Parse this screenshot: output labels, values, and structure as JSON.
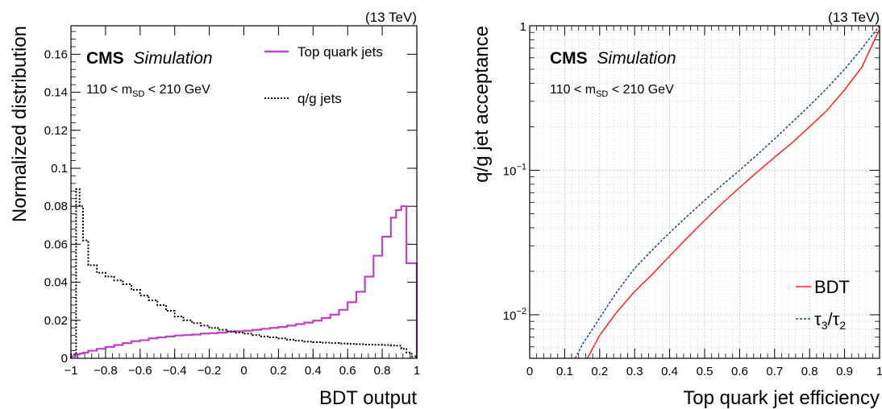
{
  "chart_data": [
    {
      "type": "histogram",
      "energy": "(13 TeV)",
      "brand": "CMS",
      "brand_sub": "Simulation",
      "selection": {
        "pre": "110 < m",
        "sub": "SD",
        "post": " < 210 GeV"
      },
      "xlabel": "BDT output",
      "ylabel": "Normalized distribution",
      "xlim": [
        -1,
        1
      ],
      "ylim": [
        0,
        0.175
      ],
      "xticks": [
        -1,
        -0.8,
        -0.6,
        -0.4,
        -0.2,
        0,
        0.2,
        0.4,
        0.6,
        0.8,
        1
      ],
      "xtick_labels": [
        "−1",
        "−0.8",
        "−0.6",
        "−0.4",
        "−0.2",
        "0",
        "0.2",
        "0.4",
        "0.6",
        "0.8",
        "1"
      ],
      "yticks": [
        0,
        0.02,
        0.04,
        0.06,
        0.08,
        0.1,
        0.12,
        0.14,
        0.16
      ],
      "ytick_labels": [
        "0",
        "0.02",
        "0.04",
        "0.06",
        "0.08",
        "0.1",
        "0.12",
        "0.14",
        "0.16"
      ],
      "legend_position": "top-right",
      "bin_edges": [
        -1,
        -0.97,
        -0.95,
        -0.93,
        -0.9,
        -0.85,
        -0.8,
        -0.75,
        -0.7,
        -0.65,
        -0.6,
        -0.55,
        -0.5,
        -0.45,
        -0.4,
        -0.35,
        -0.3,
        -0.25,
        -0.2,
        -0.15,
        -0.1,
        -0.05,
        0,
        0.05,
        0.1,
        0.15,
        0.2,
        0.25,
        0.3,
        0.35,
        0.4,
        0.45,
        0.5,
        0.55,
        0.6,
        0.65,
        0.7,
        0.75,
        0.8,
        0.85,
        0.88,
        0.91,
        0.94,
        0.97,
        1
      ],
      "series": [
        {
          "name": "Top quark jets",
          "color": "#c040c8",
          "style": "solid",
          "values": [
            0.001,
            0.002,
            0.0025,
            0.003,
            0.004,
            0.005,
            0.006,
            0.007,
            0.008,
            0.009,
            0.0095,
            0.0105,
            0.011,
            0.0115,
            0.012,
            0.0122,
            0.0125,
            0.013,
            0.0132,
            0.0135,
            0.014,
            0.0142,
            0.0145,
            0.015,
            0.0155,
            0.016,
            0.0165,
            0.0172,
            0.018,
            0.0188,
            0.0198,
            0.0212,
            0.023,
            0.0255,
            0.0295,
            0.035,
            0.043,
            0.054,
            0.064,
            0.074,
            0.078,
            0.08,
            0.05,
            0.05
          ]
        },
        {
          "name": "q/g jets",
          "color": "#000000",
          "style": "dotted",
          "values": [
            0.002,
            0.089,
            0.08,
            0.062,
            0.049,
            0.045,
            0.043,
            0.041,
            0.039,
            0.036,
            0.033,
            0.0305,
            0.028,
            0.025,
            0.022,
            0.02,
            0.0185,
            0.0172,
            0.016,
            0.015,
            0.0142,
            0.0135,
            0.013,
            0.0122,
            0.0115,
            0.011,
            0.0105,
            0.0098,
            0.0092,
            0.0088,
            0.0085,
            0.0082,
            0.008,
            0.0078,
            0.0076,
            0.0074,
            0.0072,
            0.0071,
            0.007,
            0.0068,
            0.0066,
            0.005,
            0.003,
            0.001
          ]
        }
      ]
    },
    {
      "type": "line",
      "energy": "(13 TeV)",
      "brand": "CMS",
      "brand_sub": "Simulation",
      "selection": {
        "pre": "110 < m",
        "sub": "SD",
        "post": " < 210 GeV"
      },
      "xlabel": "Top quark jet efficiency",
      "ylabel": "q/g jet acceptance",
      "xlim": [
        0,
        1
      ],
      "ylim": [
        0.005,
        1
      ],
      "yscale": "log",
      "grid": true,
      "xticks": [
        0,
        0.1,
        0.2,
        0.3,
        0.4,
        0.5,
        0.6,
        0.7,
        0.8,
        0.9,
        1
      ],
      "xtick_labels": [
        "0",
        "0.1",
        "0.2",
        "0.3",
        "0.4",
        "0.5",
        "0.6",
        "0.7",
        "0.8",
        "0.9",
        "1"
      ],
      "yticks": [
        0.01,
        0.1,
        1
      ],
      "ytick_labels": [
        {
          "base": "10",
          "exp": "−2"
        },
        {
          "base": "10",
          "exp": "−1"
        },
        {
          "base": "1",
          "exp": ""
        }
      ],
      "legend_position": "bottom-right",
      "series": [
        {
          "name": "BDT",
          "color": "#ff2020",
          "style": "solid",
          "x": [
            0.165,
            0.2,
            0.25,
            0.3,
            0.35,
            0.4,
            0.45,
            0.5,
            0.55,
            0.6,
            0.65,
            0.7,
            0.75,
            0.8,
            0.85,
            0.9,
            0.95,
            1.0
          ],
          "y": [
            0.005,
            0.0072,
            0.0105,
            0.0145,
            0.019,
            0.0255,
            0.034,
            0.045,
            0.059,
            0.076,
            0.097,
            0.123,
            0.155,
            0.2,
            0.26,
            0.36,
            0.52,
            0.95
          ]
        },
        {
          "name": "τ",
          "name_parts": [
            "τ",
            "3",
            "/",
            "τ",
            "2"
          ],
          "color": "#1f4a7a",
          "style": "dashed",
          "x": [
            0.13,
            0.15,
            0.2,
            0.25,
            0.3,
            0.35,
            0.4,
            0.45,
            0.5,
            0.55,
            0.6,
            0.65,
            0.7,
            0.75,
            0.8,
            0.85,
            0.9,
            0.95,
            1.0
          ],
          "y": [
            0.005,
            0.0062,
            0.0095,
            0.0145,
            0.021,
            0.028,
            0.037,
            0.048,
            0.062,
            0.079,
            0.1,
            0.128,
            0.165,
            0.215,
            0.28,
            0.37,
            0.5,
            0.7,
            1.0
          ]
        }
      ]
    }
  ]
}
